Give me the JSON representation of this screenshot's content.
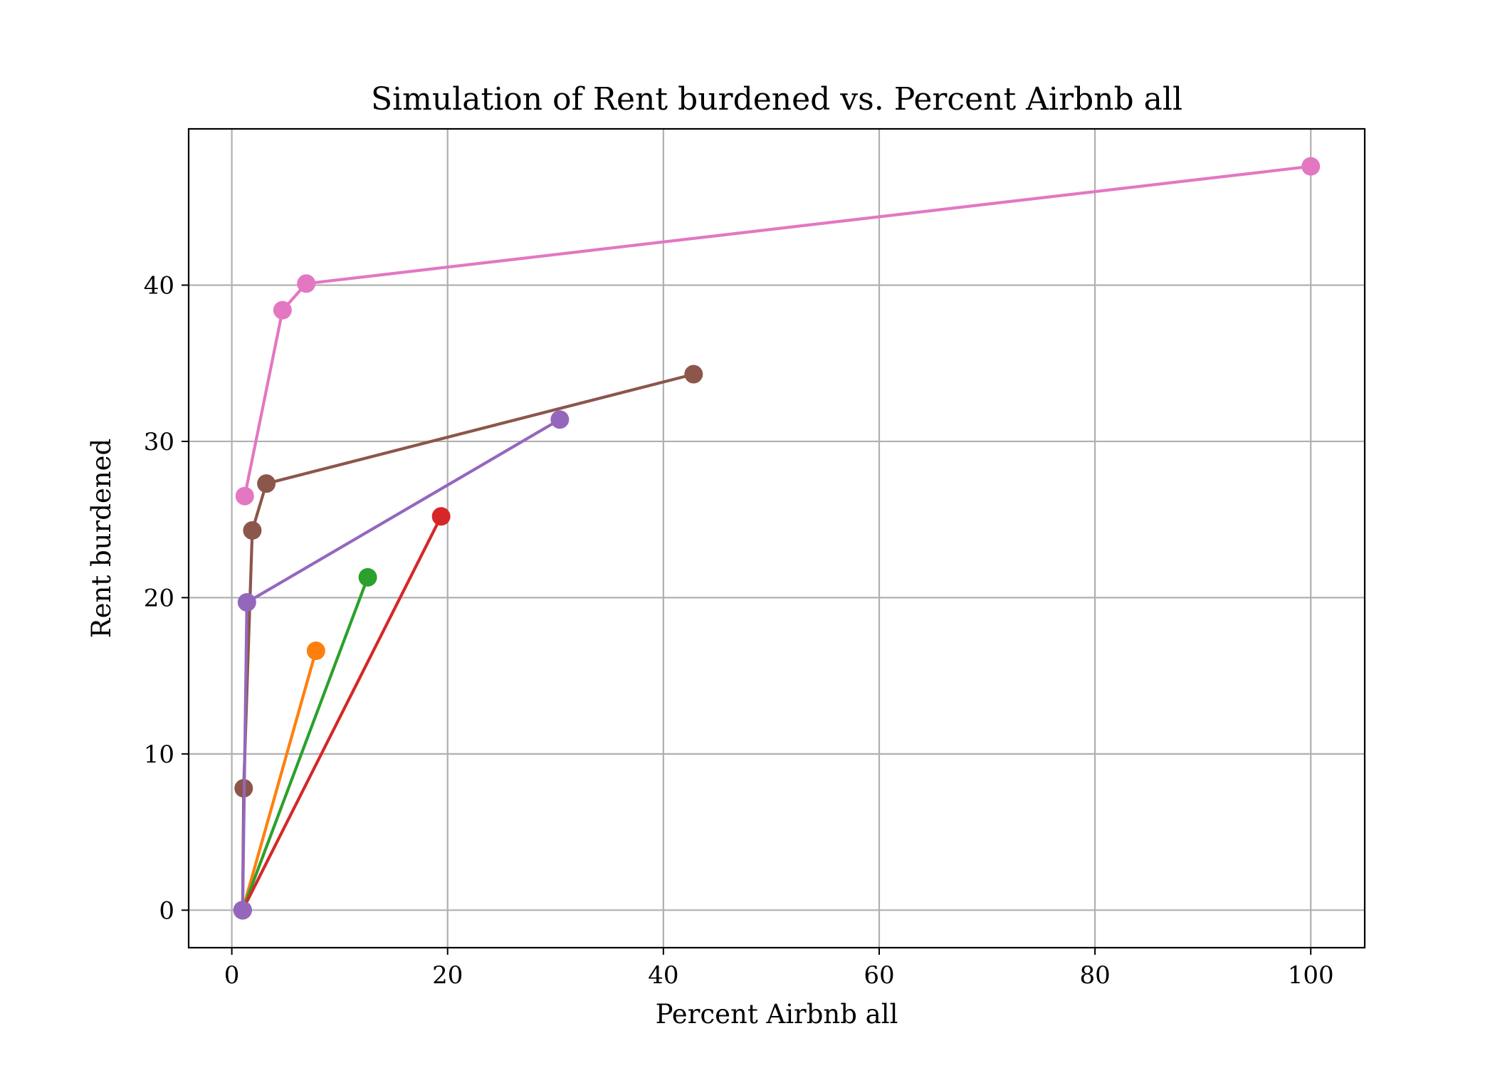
{
  "chart_data": {
    "type": "line",
    "title": "Simulation of Rent burdened vs. Percent Airbnb all",
    "xlabel": "Percent Airbnb all",
    "ylabel": "Rent burdened",
    "xlim": [
      -4,
      105
    ],
    "ylim": [
      -2.4,
      50
    ],
    "xticks": [
      0,
      20,
      40,
      60,
      80,
      100
    ],
    "yticks": [
      0,
      10,
      20,
      30,
      40
    ],
    "xtick_labels": [
      "0",
      "20",
      "40",
      "60",
      "80",
      "100"
    ],
    "ytick_labels": [
      "0",
      "10",
      "20",
      "30",
      "40"
    ],
    "grid": true,
    "legend": "none",
    "series": [
      {
        "color": "#1f77b4",
        "points": [
          [
            1.0,
            0.0
          ]
        ]
      },
      {
        "color": "#ff7f0e",
        "points": [
          [
            1.0,
            0.0
          ],
          [
            7.8,
            16.6
          ]
        ]
      },
      {
        "color": "#2ca02c",
        "points": [
          [
            1.0,
            0.0
          ],
          [
            12.6,
            21.3
          ]
        ]
      },
      {
        "color": "#d62728",
        "points": [
          [
            1.0,
            0.0
          ],
          [
            19.4,
            25.2
          ]
        ]
      },
      {
        "color": "#8c564b",
        "points": [
          [
            1.0,
            0.0
          ],
          [
            1.1,
            7.8
          ],
          [
            1.9,
            24.3
          ],
          [
            3.2,
            27.3
          ],
          [
            42.8,
            34.3
          ]
        ]
      },
      {
        "color": "#e377c2",
        "points": [
          [
            1.2,
            26.5
          ],
          [
            4.7,
            38.4
          ],
          [
            6.9,
            40.1
          ],
          [
            100.0,
            47.6
          ]
        ]
      },
      {
        "color": "#9467bd",
        "points": [
          [
            1.0,
            0.0
          ],
          [
            1.4,
            19.7
          ],
          [
            30.4,
            31.4
          ]
        ]
      }
    ]
  }
}
